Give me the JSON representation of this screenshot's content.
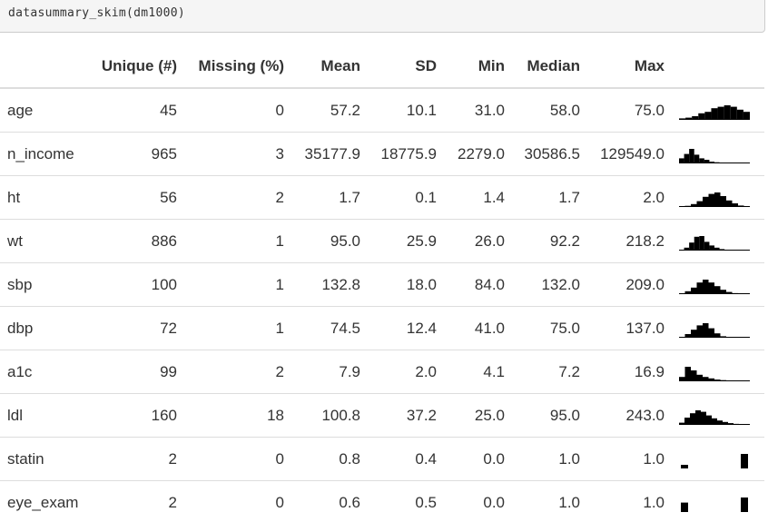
{
  "code": "datasummary_skim(dm1000)",
  "columns": [
    "",
    "Unique (#)",
    "Missing (%)",
    "Mean",
    "SD",
    "Min",
    "Median",
    "Max",
    ""
  ],
  "rows": [
    {
      "name": "age",
      "unique": "45",
      "missing": "0",
      "mean": "57.2",
      "sd": "10.1",
      "min": "31.0",
      "median": "58.0",
      "max": "75.0",
      "hist": [
        0.1,
        0.15,
        0.25,
        0.45,
        0.55,
        0.8,
        0.9,
        1.0,
        0.9,
        0.7,
        0.55
      ]
    },
    {
      "name": "n_income",
      "unique": "965",
      "missing": "3",
      "mean": "35177.9",
      "sd": "18775.9",
      "min": "2279.0",
      "median": "30586.5",
      "max": "129549.0",
      "hist": [
        0.35,
        0.65,
        1.0,
        0.6,
        0.35,
        0.25,
        0.12,
        0.08,
        0.05,
        0.03,
        0.02,
        0.02,
        0.01,
        0.01
      ]
    },
    {
      "name": "ht",
      "unique": "56",
      "missing": "2",
      "mean": "1.7",
      "sd": "0.1",
      "min": "1.4",
      "median": "1.7",
      "max": "2.0",
      "hist": [
        0.03,
        0.08,
        0.2,
        0.4,
        0.7,
        0.9,
        1.0,
        0.75,
        0.45,
        0.25,
        0.1,
        0.04
      ]
    },
    {
      "name": "wt",
      "unique": "886",
      "missing": "1",
      "mean": "95.0",
      "sd": "25.9",
      "min": "26.0",
      "median": "92.2",
      "max": "218.2",
      "hist": [
        0.05,
        0.2,
        0.55,
        0.95,
        1.0,
        0.6,
        0.35,
        0.2,
        0.1,
        0.05,
        0.03,
        0.02,
        0.01,
        0.01
      ]
    },
    {
      "name": "sbp",
      "unique": "100",
      "missing": "1",
      "mean": "132.8",
      "sd": "18.0",
      "min": "84.0",
      "median": "132.0",
      "max": "209.0",
      "hist": [
        0.05,
        0.2,
        0.45,
        0.8,
        1.0,
        0.8,
        0.55,
        0.3,
        0.15,
        0.07,
        0.03,
        0.02
      ]
    },
    {
      "name": "dbp",
      "unique": "72",
      "missing": "1",
      "mean": "74.5",
      "sd": "12.4",
      "min": "41.0",
      "median": "75.0",
      "max": "137.0",
      "hist": [
        0.05,
        0.25,
        0.55,
        0.85,
        1.0,
        0.65,
        0.3,
        0.1,
        0.04,
        0.0,
        0.0,
        0.01
      ]
    },
    {
      "name": "a1c",
      "unique": "99",
      "missing": "2",
      "mean": "7.9",
      "sd": "2.0",
      "min": "4.1",
      "median": "7.2",
      "max": "16.9",
      "hist": [
        0.3,
        1.0,
        0.75,
        0.45,
        0.3,
        0.2,
        0.12,
        0.08,
        0.05,
        0.03,
        0.02,
        0.01
      ]
    },
    {
      "name": "ldl",
      "unique": "160",
      "missing": "18",
      "mean": "100.8",
      "sd": "37.2",
      "min": "25.0",
      "median": "95.0",
      "max": "243.0",
      "hist": [
        0.15,
        0.5,
        0.8,
        1.0,
        0.9,
        0.65,
        0.45,
        0.3,
        0.2,
        0.12,
        0.07,
        0.04,
        0.02
      ]
    },
    {
      "name": "statin",
      "unique": "2",
      "missing": "0",
      "mean": "0.8",
      "sd": "0.4",
      "min": "0.0",
      "median": "1.0",
      "max": "1.0",
      "hist": [
        0.25,
        0,
        0,
        0,
        0,
        0,
        0,
        0,
        0,
        0,
        0,
        1.0
      ]
    },
    {
      "name": "eye_exam",
      "unique": "2",
      "missing": "0",
      "mean": "0.6",
      "sd": "0.5",
      "min": "0.0",
      "median": "1.0",
      "max": "1.0",
      "hist": [
        0.65,
        0,
        0,
        0,
        0,
        0,
        0,
        0,
        0,
        0,
        0,
        1.0
      ]
    }
  ],
  "colors": {
    "text": "#333333",
    "rule": "#dddddd",
    "spark": "#000000",
    "code_bg": "#f5f5f5"
  }
}
